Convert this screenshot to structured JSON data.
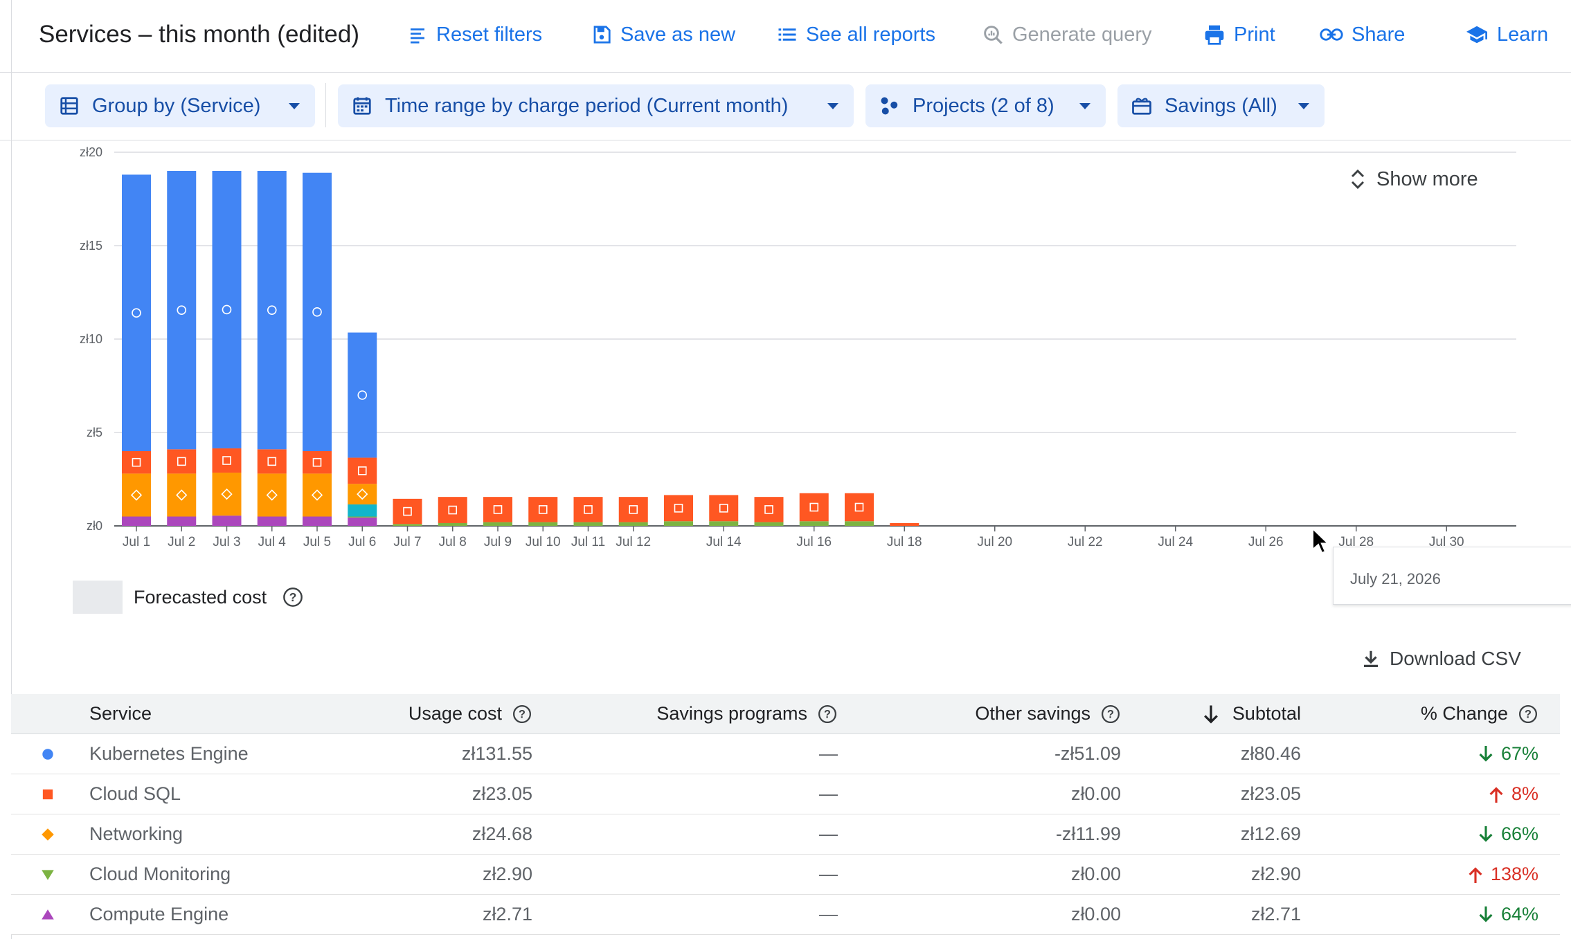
{
  "header": {
    "title": "Services – this month (edited)",
    "actions": {
      "reset_filters": "Reset filters",
      "save_as_new": "Save as new",
      "see_all_reports": "See all reports",
      "generate_query": "Generate query",
      "print": "Print",
      "share": "Share",
      "learn": "Learn"
    }
  },
  "filters": {
    "group_by": "Group by (Service)",
    "time_range": "Time range by charge period (Current month)",
    "projects": "Projects (2 of 8)",
    "savings": "Savings (All)",
    "show_more": "Show more"
  },
  "colors": {
    "accent": "#1a73e8",
    "kubernetes": "#4285f4",
    "cloud_sql": "#ff5722",
    "networking": "#ff9800",
    "monitoring": "#7cb342",
    "compute": "#ab47bc",
    "other": "#12b5cb",
    "down": "#188038",
    "up": "#d93025"
  },
  "chart_data": {
    "type": "bar",
    "stacked": true,
    "y_ticks": [
      "zł0",
      "zł5",
      "zł10",
      "zł15",
      "zł20"
    ],
    "ylim": [
      0,
      20
    ],
    "x_tick_labels": [
      "Jul 1",
      "Jul 2",
      "Jul 3",
      "Jul 4",
      "Jul 5",
      "Jul 6",
      "Jul 7",
      "Jul 8",
      "Jul 9",
      "Jul 10",
      "Jul 11",
      "Jul 12",
      "Jul 14",
      "Jul 16",
      "Jul 18",
      "Jul 20",
      "Jul 22",
      "Jul 24",
      "Jul 26",
      "Jul 28",
      "Jul 30"
    ],
    "x_tick_days": [
      1,
      2,
      3,
      4,
      5,
      6,
      7,
      8,
      9,
      10,
      11,
      12,
      14,
      16,
      18,
      20,
      22,
      24,
      26,
      28,
      30
    ],
    "categories": [
      "Jul 1",
      "Jul 2",
      "Jul 3",
      "Jul 4",
      "Jul 5",
      "Jul 6",
      "Jul 7",
      "Jul 8",
      "Jul 9",
      "Jul 10",
      "Jul 11",
      "Jul 12",
      "Jul 13",
      "Jul 14",
      "Jul 15",
      "Jul 16",
      "Jul 17",
      "Jul 18"
    ],
    "series": [
      {
        "name": "Compute Engine",
        "marker": "triangle-up",
        "values": [
          0.5,
          0.5,
          0.55,
          0.5,
          0.5,
          0.45,
          0,
          0,
          0,
          0,
          0,
          0,
          0,
          0,
          0,
          0,
          0,
          0
        ]
      },
      {
        "name": "Cloud Monitoring",
        "marker": "triangle-down",
        "values": [
          0,
          0,
          0,
          0,
          0,
          0.05,
          0.1,
          0.15,
          0.2,
          0.2,
          0.2,
          0.2,
          0.25,
          0.25,
          0.2,
          0.25,
          0.25,
          0
        ]
      },
      {
        "name": "Other",
        "marker": "none",
        "values": [
          0,
          0,
          0,
          0,
          0,
          0.65,
          0,
          0,
          0,
          0,
          0,
          0,
          0,
          0,
          0,
          0,
          0,
          0
        ]
      },
      {
        "name": "Networking",
        "marker": "diamond",
        "values": [
          2.3,
          2.3,
          2.3,
          2.3,
          2.3,
          1.1,
          0,
          0,
          0,
          0,
          0,
          0,
          0,
          0,
          0,
          0,
          0,
          0
        ]
      },
      {
        "name": "Cloud SQL",
        "marker": "square",
        "values": [
          1.2,
          1.3,
          1.3,
          1.3,
          1.2,
          1.4,
          1.35,
          1.4,
          1.35,
          1.35,
          1.35,
          1.35,
          1.4,
          1.4,
          1.35,
          1.5,
          1.5,
          0.15
        ]
      },
      {
        "name": "Kubernetes Engine",
        "marker": "circle",
        "values": [
          14.8,
          14.9,
          14.85,
          14.9,
          14.9,
          6.7,
          0,
          0,
          0,
          0,
          0,
          0,
          0,
          0,
          0,
          0,
          0,
          0
        ]
      }
    ],
    "grid": true,
    "legend": {
      "label": "Forecasted cost",
      "position": "bottom-left"
    },
    "tooltip": "July 21, 2026"
  },
  "download_csv": "Download CSV",
  "table": {
    "columns": {
      "service": "Service",
      "usage_cost": "Usage cost",
      "savings_programs": "Savings programs",
      "other_savings": "Other savings",
      "subtotal": "Subtotal",
      "change": "% Change"
    },
    "rows": [
      {
        "marker": "circle",
        "service": "Kubernetes Engine",
        "usage_cost": "zł131.55",
        "savings_programs": "—",
        "other_savings": "-zł51.09",
        "subtotal": "zł80.46",
        "direction": "down",
        "change": "67%"
      },
      {
        "marker": "square",
        "service": "Cloud SQL",
        "usage_cost": "zł23.05",
        "savings_programs": "—",
        "other_savings": "zł0.00",
        "subtotal": "zł23.05",
        "direction": "up",
        "change": "8%"
      },
      {
        "marker": "diamond",
        "service": "Networking",
        "usage_cost": "zł24.68",
        "savings_programs": "—",
        "other_savings": "-zł11.99",
        "subtotal": "zł12.69",
        "direction": "down",
        "change": "66%"
      },
      {
        "marker": "triangle-down",
        "service": "Cloud Monitoring",
        "usage_cost": "zł2.90",
        "savings_programs": "—",
        "other_savings": "zł0.00",
        "subtotal": "zł2.90",
        "direction": "up",
        "change": "138%"
      },
      {
        "marker": "triangle-up",
        "service": "Compute Engine",
        "usage_cost": "zł2.71",
        "savings_programs": "—",
        "other_savings": "zł0.00",
        "subtotal": "zł2.71",
        "direction": "down",
        "change": "64%"
      }
    ]
  }
}
